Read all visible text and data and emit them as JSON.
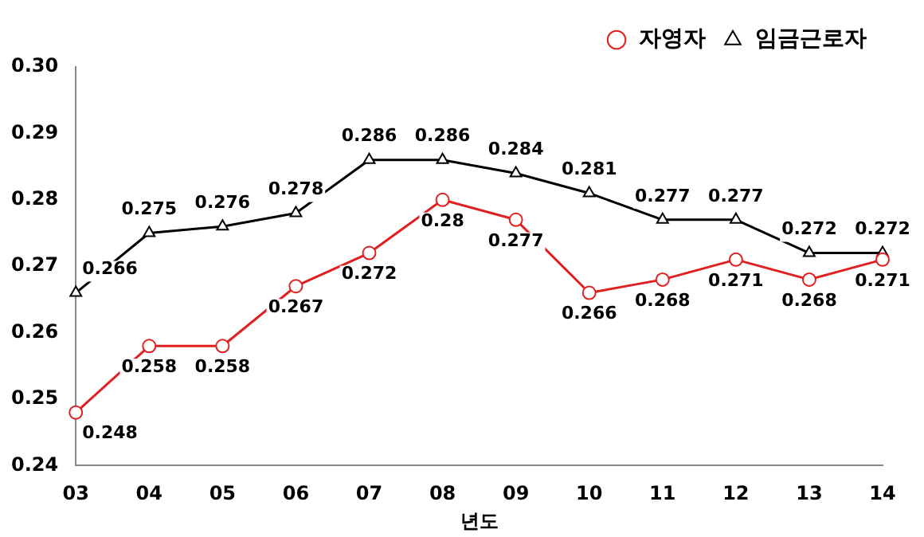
{
  "chart_data": {
    "type": "line",
    "xlabel": "년도",
    "categories": [
      "03",
      "04",
      "05",
      "06",
      "07",
      "08",
      "09",
      "10",
      "11",
      "12",
      "13",
      "14"
    ],
    "series": [
      {
        "name": "자영자",
        "color": "#e02020",
        "marker": "circle",
        "values": [
          0.248,
          0.258,
          0.258,
          0.267,
          0.272,
          0.28,
          0.277,
          0.266,
          0.268,
          0.271,
          0.268,
          0.271
        ]
      },
      {
        "name": "임금근로자",
        "color": "#000000",
        "marker": "triangle",
        "values": [
          0.266,
          0.275,
          0.276,
          0.278,
          0.286,
          0.286,
          0.284,
          0.281,
          0.277,
          0.277,
          0.272,
          0.272
        ]
      }
    ],
    "ylim": [
      0.24,
      0.3
    ],
    "yticks": [
      0.24,
      0.25,
      0.26,
      0.27,
      0.28,
      0.29,
      {
        "value": 0.3,
        "label": "0.30"
      }
    ],
    "grid": false,
    "legend": "top right",
    "data_labels": true,
    "line_style": "solid"
  }
}
